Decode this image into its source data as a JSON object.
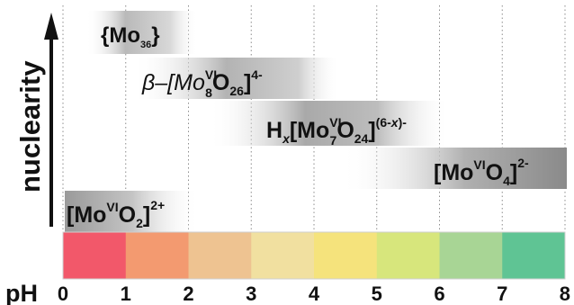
{
  "axis": {
    "y_label": "nuclearity",
    "x_label": "pH",
    "ticks": [
      "0",
      "1",
      "2",
      "3",
      "4",
      "5",
      "6",
      "7",
      "8"
    ],
    "ph_min": 0,
    "ph_max": 8
  },
  "ph_scale_colors": [
    "#f2586a",
    "#f39a70",
    "#eec391",
    "#f1e0a0",
    "#f5e37c",
    "#d7e67c",
    "#a8d595",
    "#5fc494"
  ],
  "species": [
    {
      "id": "mo36",
      "ph_from": 0.45,
      "ph_to": 2.15,
      "main": "{Mo",
      "sub": "36",
      "tail": "}"
    },
    {
      "id": "beta-mo8",
      "ph_from": 1.1,
      "ph_to": 4.1,
      "prefix": "β–[Mo",
      "sup1": "VI",
      "sub1": "8",
      "mid": "O",
      "sub2": "26",
      "close": "]",
      "charge": "4-"
    },
    {
      "id": "mo7",
      "ph_from": 2.4,
      "ph_to": 6.7,
      "h": "H",
      "x": "x",
      "open": "[Mo",
      "sup1": "VI",
      "sub1": "7",
      "mid": "O",
      "sub2": "24",
      "close": "]",
      "charge": "(6-",
      "charge_x": "x",
      "charge_end": ")-"
    },
    {
      "id": "mo04",
      "ph_from": 4.4,
      "ph_to": 8.0,
      "main": "[Mo",
      "sup1": "VI",
      "mid": "O",
      "sub1": "4",
      "close": "]",
      "charge": "2-"
    },
    {
      "id": "mo02",
      "ph_from": 0.0,
      "ph_to": 2.0,
      "main": "[Mo",
      "sup1": "VI",
      "mid": "O",
      "sub1": "2",
      "close": "]",
      "charge": "2+"
    }
  ]
}
